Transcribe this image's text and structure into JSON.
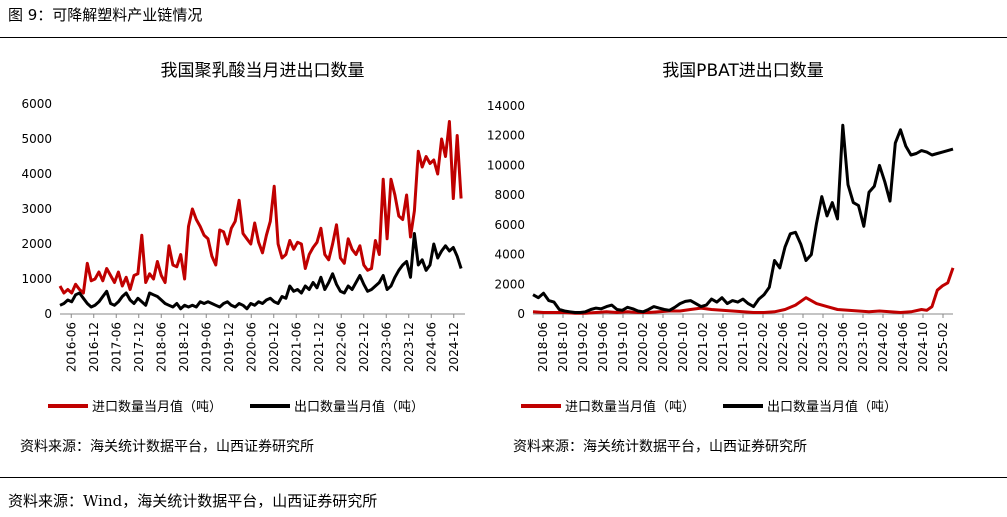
{
  "header": {
    "figure_title": "图 9：可降解塑料产业链情况"
  },
  "footer": {
    "source": "资料来源：Wind，海关统计数据平台，山西证券研究所"
  },
  "colors": {
    "import": "#c00000",
    "export": "#000000"
  },
  "chart_data": [
    {
      "type": "line",
      "title": "我国聚乳酸当月进出口数量",
      "ylim": [
        0,
        6000
      ],
      "yticks": [
        0,
        1000,
        2000,
        3000,
        4000,
        5000,
        6000
      ],
      "xtick_labels": [
        "2016-06",
        "2016-12",
        "2017-06",
        "2017-12",
        "2018-06",
        "2018-12",
        "2019-06",
        "2019-12",
        "2020-06",
        "2020-12",
        "2021-06",
        "2021-12",
        "2022-06",
        "2022-12",
        "2023-06",
        "2023-12",
        "2024-06",
        "2024-12"
      ],
      "xlim": [
        0,
        104
      ],
      "grid": false,
      "legend": "bottom",
      "source_note": "资料来源：海关统计数据平台，山西证券研究所",
      "series": [
        {
          "name": "进口数量当月值（吨）",
          "color": "#c00000",
          "x": [
            0,
            1,
            2,
            3,
            4,
            5,
            6,
            7,
            8,
            9,
            10,
            11,
            12,
            13,
            14,
            15,
            16,
            17,
            18,
            19,
            20,
            21,
            22,
            23,
            24,
            25,
            26,
            27,
            28,
            29,
            30,
            31,
            32,
            33,
            34,
            35,
            36,
            37,
            38,
            39,
            40,
            41,
            42,
            43,
            44,
            45,
            46,
            47,
            48,
            49,
            50,
            51,
            52,
            53,
            54,
            55,
            56,
            57,
            58,
            59,
            60,
            61,
            62,
            63,
            64,
            65,
            66,
            67,
            68,
            69,
            70,
            71,
            72,
            73,
            74,
            75,
            76,
            77,
            78,
            79,
            80,
            81,
            82,
            83,
            84,
            85,
            86,
            87,
            88,
            89,
            90,
            91,
            92,
            93,
            94,
            95,
            96,
            97,
            98,
            99,
            100,
            101,
            102,
            103
          ],
          "y": [
            800,
            600,
            700,
            600,
            850,
            700,
            600,
            1450,
            950,
            1000,
            1200,
            950,
            1300,
            1100,
            900,
            1200,
            800,
            1050,
            700,
            1100,
            1150,
            2250,
            900,
            1150,
            1000,
            1500,
            1100,
            900,
            1950,
            1400,
            1350,
            1700,
            1000,
            2500,
            3000,
            2700,
            2500,
            2250,
            2150,
            1650,
            1400,
            2400,
            2350,
            2000,
            2450,
            2650,
            3250,
            2300,
            2150,
            2000,
            2600,
            2050,
            1750,
            2250,
            2650,
            3650,
            2000,
            1600,
            1700,
            2100,
            1850,
            2050,
            2000,
            1300,
            1700,
            1900,
            2050,
            2450,
            1700,
            1550,
            2000,
            2550,
            1600,
            1450,
            2150,
            1850,
            1700,
            1950,
            1400,
            1250,
            1300,
            2100,
            1700,
            3850,
            2150,
            3850,
            3400,
            2800,
            2700,
            3400,
            2200,
            2950,
            4650,
            4200,
            4500,
            4300,
            4400,
            4000,
            5000,
            4500,
            5500,
            3300,
            5100,
            3300
          ]
        },
        {
          "name": "出口数量当月值（吨）",
          "color": "#000000",
          "x": [
            0,
            1,
            2,
            3,
            4,
            5,
            6,
            7,
            8,
            9,
            10,
            11,
            12,
            13,
            14,
            15,
            16,
            17,
            18,
            19,
            20,
            21,
            22,
            23,
            24,
            25,
            26,
            27,
            28,
            29,
            30,
            31,
            32,
            33,
            34,
            35,
            36,
            37,
            38,
            39,
            40,
            41,
            42,
            43,
            44,
            45,
            46,
            47,
            48,
            49,
            50,
            51,
            52,
            53,
            54,
            55,
            56,
            57,
            58,
            59,
            60,
            61,
            62,
            63,
            64,
            65,
            66,
            67,
            68,
            69,
            70,
            71,
            72,
            73,
            74,
            75,
            76,
            77,
            78,
            79,
            80,
            81,
            82,
            83,
            84,
            85,
            86,
            87,
            88,
            89,
            90,
            91,
            92,
            93,
            94,
            95,
            96,
            97,
            98,
            99,
            100,
            101,
            102,
            103
          ],
          "y": [
            250,
            300,
            400,
            350,
            550,
            600,
            450,
            300,
            200,
            250,
            350,
            500,
            650,
            300,
            250,
            350,
            500,
            600,
            400,
            300,
            450,
            350,
            250,
            600,
            550,
            500,
            400,
            300,
            250,
            200,
            300,
            150,
            250,
            200,
            250,
            200,
            350,
            300,
            350,
            300,
            250,
            200,
            300,
            350,
            250,
            200,
            300,
            250,
            150,
            300,
            250,
            350,
            300,
            400,
            450,
            350,
            300,
            500,
            450,
            800,
            650,
            700,
            600,
            800,
            700,
            900,
            750,
            1050,
            700,
            900,
            1150,
            850,
            650,
            600,
            800,
            700,
            900,
            1100,
            850,
            650,
            700,
            800,
            900,
            1100,
            700,
            800,
            1050,
            1250,
            1400,
            1500,
            1050,
            2300,
            1400,
            1550,
            1250,
            1400,
            2000,
            1600,
            1800,
            1950,
            1800,
            1900,
            1650,
            1300
          ]
        }
      ]
    },
    {
      "type": "line",
      "title": "我国PBAT进出口数量",
      "ylim": [
        0,
        14000
      ],
      "yticks": [
        0,
        2000,
        4000,
        6000,
        8000,
        10000,
        12000,
        14000
      ],
      "xtick_labels": [
        "2018-06",
        "2018-10",
        "2019-02",
        "2019-06",
        "2019-10",
        "2020-02",
        "2020-06",
        "2020-10",
        "2021-02",
        "2021-06",
        "2021-10",
        "2022-02",
        "2022-06",
        "2022-10",
        "2023-02",
        "2023-06",
        "2023-10",
        "2024-02",
        "2024-06",
        "2024-10",
        "2025-02"
      ],
      "xlim": [
        0,
        80
      ],
      "grid": false,
      "legend": "bottom",
      "source_note": "资料来源：海关统计数据平台，山西证券研究所",
      "series": [
        {
          "name": "进口数量当月值（吨）",
          "color": "#c00000",
          "x": [
            0,
            2,
            4,
            6,
            8,
            10,
            12,
            14,
            16,
            18,
            20,
            22,
            24,
            26,
            28,
            30,
            32,
            34,
            36,
            38,
            40,
            42,
            44,
            46,
            48,
            50,
            52,
            54,
            56,
            58,
            60,
            62,
            64,
            66,
            68,
            70,
            72,
            74,
            75,
            76,
            77,
            78,
            79,
            80
          ],
          "y": [
            150,
            100,
            100,
            100,
            50,
            50,
            100,
            150,
            100,
            150,
            100,
            100,
            150,
            200,
            200,
            300,
            400,
            300,
            250,
            200,
            150,
            100,
            100,
            150,
            300,
            600,
            1100,
            700,
            500,
            300,
            250,
            200,
            150,
            200,
            150,
            100,
            150,
            300,
            250,
            500,
            1600,
            1900,
            2100,
            3100
          ]
        },
        {
          "name": "出口数量当月值（吨）",
          "color": "#000000",
          "x": [
            0,
            1,
            2,
            3,
            4,
            5,
            6,
            7,
            8,
            9,
            10,
            11,
            12,
            13,
            14,
            15,
            16,
            17,
            18,
            19,
            20,
            21,
            22,
            23,
            24,
            25,
            26,
            27,
            28,
            29,
            30,
            31,
            32,
            33,
            34,
            35,
            36,
            37,
            38,
            39,
            40,
            41,
            42,
            43,
            44,
            45,
            46,
            47,
            48,
            49,
            50,
            51,
            52,
            53,
            54,
            55,
            56,
            57,
            58,
            59,
            60,
            61,
            62,
            63,
            64,
            65,
            66,
            67,
            68,
            69,
            70,
            71,
            72,
            73,
            74,
            75,
            76,
            77,
            78,
            79,
            80
          ],
          "y": [
            1300,
            1100,
            1400,
            900,
            800,
            300,
            200,
            150,
            100,
            100,
            150,
            300,
            400,
            350,
            500,
            600,
            300,
            250,
            450,
            350,
            200,
            150,
            300,
            500,
            400,
            300,
            250,
            450,
            700,
            850,
            900,
            700,
            500,
            600,
            1000,
            800,
            1100,
            700,
            900,
            800,
            1000,
            700,
            500,
            1000,
            1300,
            1800,
            3600,
            3100,
            4500,
            5400,
            5500,
            4700,
            3600,
            4000,
            6100,
            7900,
            6600,
            7500,
            6400,
            12700,
            8700,
            7500,
            7300,
            5900,
            8200,
            8600,
            10000,
            8900,
            7600,
            11500,
            12400,
            11300,
            10700,
            10800,
            11000,
            10900,
            10700,
            10800,
            10900,
            11000,
            11100
          ]
        }
      ]
    }
  ]
}
